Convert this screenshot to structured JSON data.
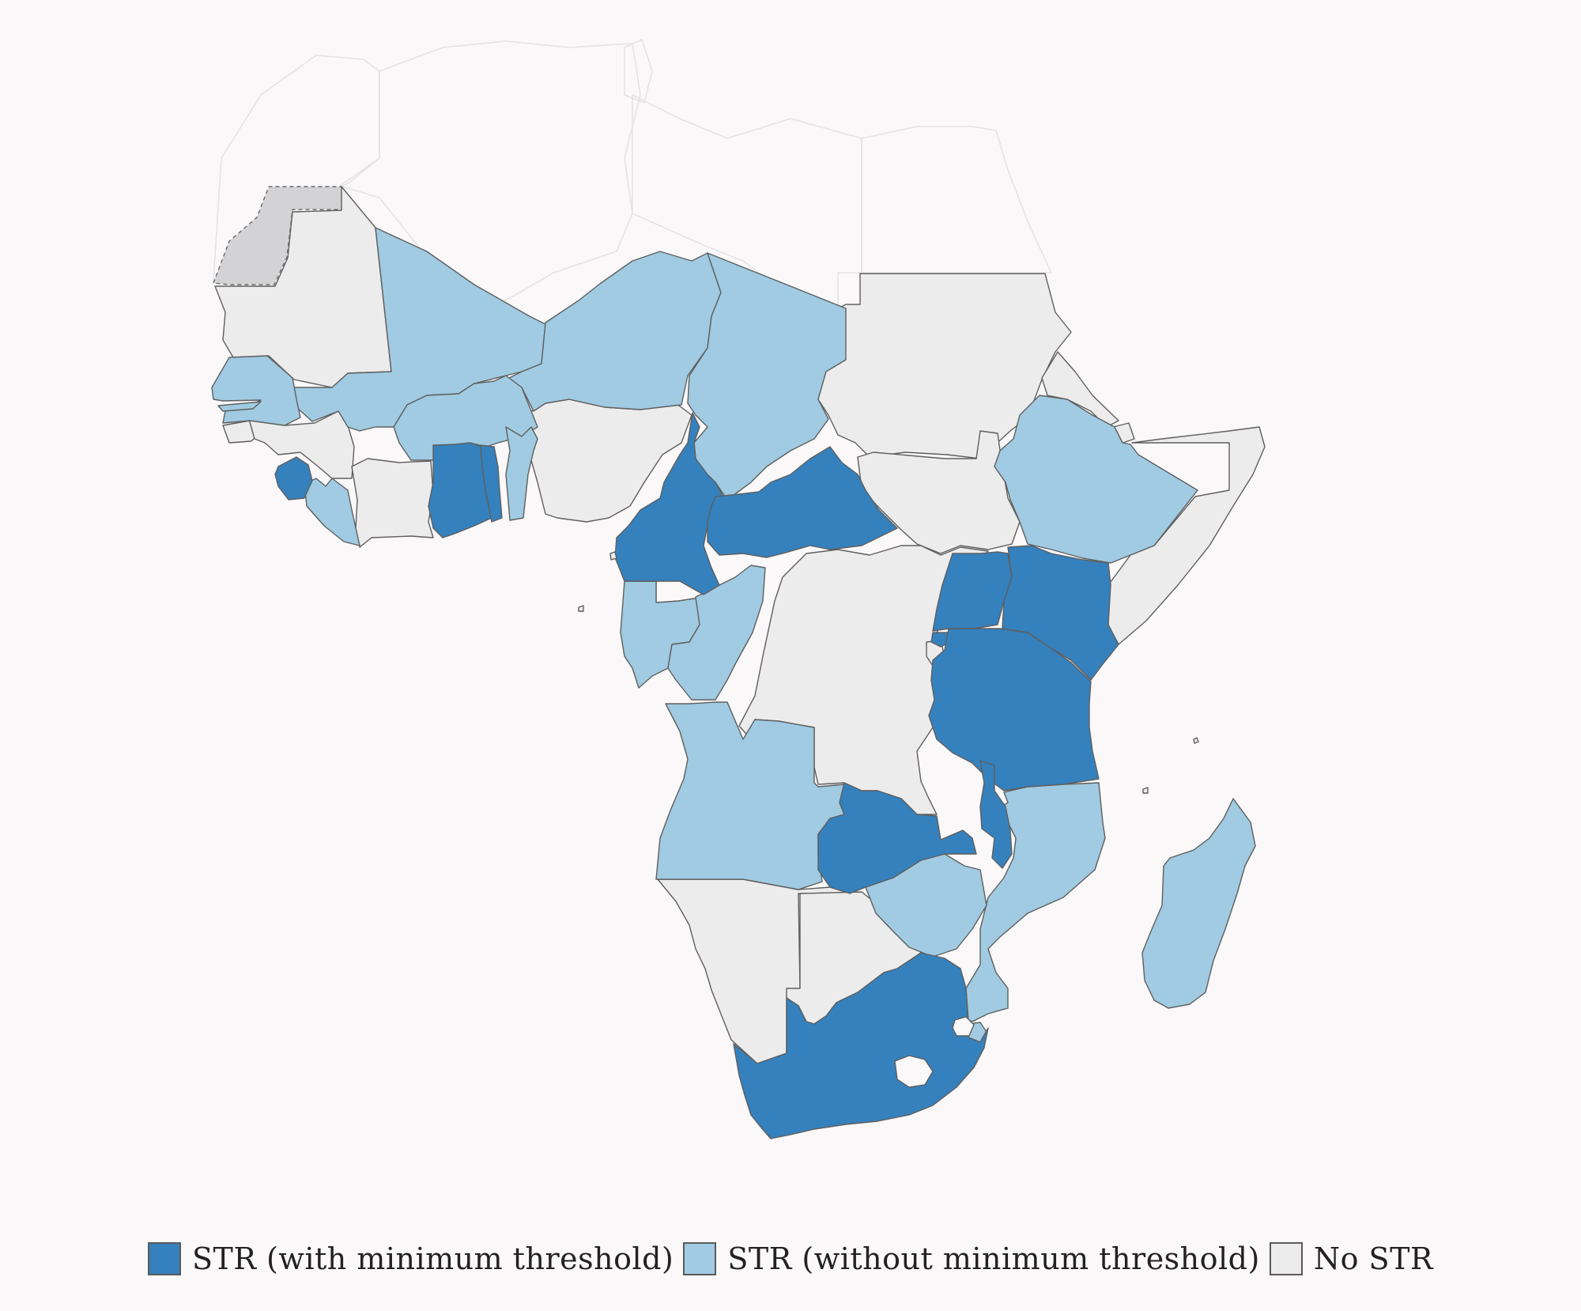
{
  "legend": {
    "items": [
      {
        "label": "STR (with minimum threshold)",
        "color": "#3581bd",
        "category": "str-min"
      },
      {
        "label": "STR (without minimum threshold)",
        "color": "#a0cbe2",
        "category": "str-nomin"
      },
      {
        "label": "No STR",
        "color": "#ececec",
        "category": "no-str"
      }
    ]
  },
  "map": {
    "colors": {
      "str_min": "#3581bd",
      "str_nomin": "#a0cbe2",
      "no_str": "#ececec",
      "not_covered": "#faf8f9",
      "disputed": "#d3d3d5",
      "border": "#5f5f5f"
    },
    "countries": {
      "str_with_minimum_threshold": [
        "Sierra Leone",
        "Ghana",
        "Togo",
        "Cameroon",
        "Central African Republic",
        "Uganda",
        "Kenya",
        "Rwanda",
        "Tanzania",
        "Zambia",
        "Malawi",
        "South Africa"
      ],
      "str_without_minimum_threshold": [
        "Mali",
        "Niger",
        "Chad",
        "Senegal",
        "Gambia",
        "Burkina Faso",
        "Benin",
        "Liberia",
        "Ethiopia",
        "Gabon",
        "Republic of the Congo",
        "Angola",
        "Mozambique",
        "Zimbabwe",
        "Madagascar",
        "Eswatini"
      ],
      "no_str": [
        "Mauritania",
        "Guinea-Bissau",
        "Guinea",
        "Côte d'Ivoire",
        "Nigeria",
        "Equatorial Guinea",
        "Sudan",
        "South Sudan",
        "Eritrea",
        "Djibouti",
        "Somalia",
        "DR Congo",
        "Burundi",
        "Namibia",
        "Botswana",
        "Lesotho"
      ],
      "disputed": [
        "Western Sahara"
      ],
      "not_covered": [
        "Morocco",
        "Algeria",
        "Tunisia",
        "Libya",
        "Egypt"
      ]
    }
  }
}
